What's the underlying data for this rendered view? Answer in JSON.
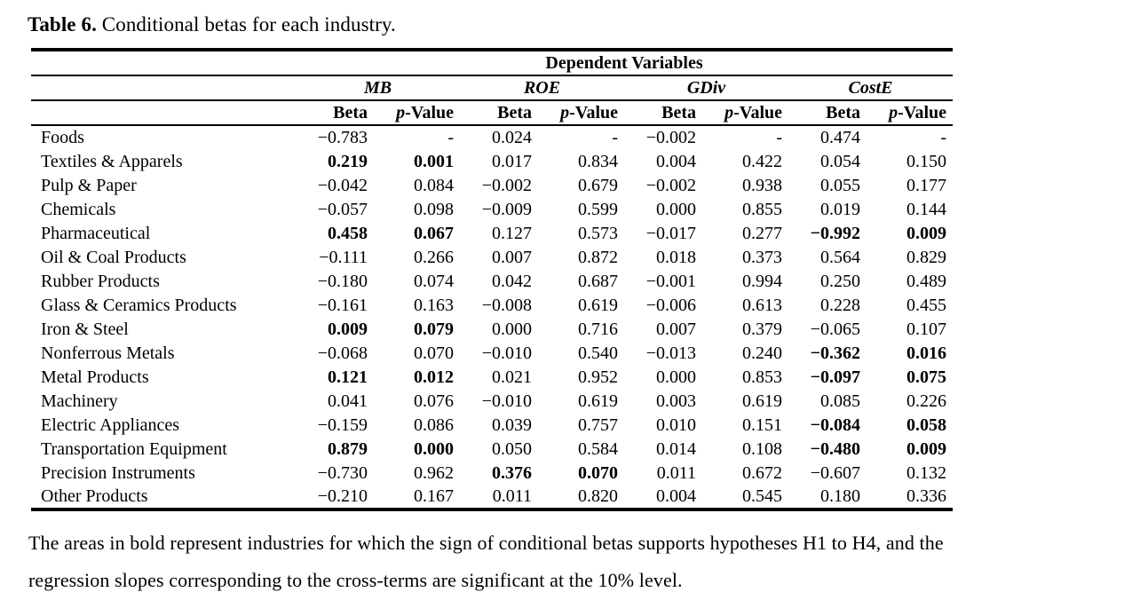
{
  "title": {
    "label": "Table 6.",
    "caption": " Conditional betas for each industry."
  },
  "table": {
    "dependent_variables": "Dependent Variables",
    "groups": [
      "MB",
      "ROE",
      "GDiv",
      "CostE"
    ],
    "beta_label": "Beta",
    "p_italic": "p",
    "p_rest": "-Value",
    "rows": [
      {
        "industry": "Foods",
        "values": [
          "−0.783",
          "-",
          "0.024",
          "-",
          "−0.002",
          "-",
          "0.474",
          "-"
        ],
        "bold": []
      },
      {
        "industry": "Textiles & Apparels",
        "values": [
          "0.219",
          "0.001",
          "0.017",
          "0.834",
          "0.004",
          "0.422",
          "0.054",
          "0.150"
        ],
        "bold": [
          0,
          1
        ]
      },
      {
        "industry": "Pulp & Paper",
        "values": [
          "−0.042",
          "0.084",
          "−0.002",
          "0.679",
          "−0.002",
          "0.938",
          "0.055",
          "0.177"
        ],
        "bold": []
      },
      {
        "industry": "Chemicals",
        "values": [
          "−0.057",
          "0.098",
          "−0.009",
          "0.599",
          "0.000",
          "0.855",
          "0.019",
          "0.144"
        ],
        "bold": []
      },
      {
        "industry": "Pharmaceutical",
        "values": [
          "0.458",
          "0.067",
          "0.127",
          "0.573",
          "−0.017",
          "0.277",
          "−0.992",
          "0.009"
        ],
        "bold": [
          0,
          1,
          6,
          7
        ]
      },
      {
        "industry": "Oil & Coal Products",
        "values": [
          "−0.111",
          "0.266",
          "0.007",
          "0.872",
          "0.018",
          "0.373",
          "0.564",
          "0.829"
        ],
        "bold": []
      },
      {
        "industry": "Rubber Products",
        "values": [
          "−0.180",
          "0.074",
          "0.042",
          "0.687",
          "−0.001",
          "0.994",
          "0.250",
          "0.489"
        ],
        "bold": []
      },
      {
        "industry": "Glass & Ceramics Products",
        "values": [
          "−0.161",
          "0.163",
          "−0.008",
          "0.619",
          "−0.006",
          "0.613",
          "0.228",
          "0.455"
        ],
        "bold": []
      },
      {
        "industry": "Iron & Steel",
        "values": [
          "0.009",
          "0.079",
          "0.000",
          "0.716",
          "0.007",
          "0.379",
          "−0.065",
          "0.107"
        ],
        "bold": [
          0,
          1
        ]
      },
      {
        "industry": "Nonferrous Metals",
        "values": [
          "−0.068",
          "0.070",
          "−0.010",
          "0.540",
          "−0.013",
          "0.240",
          "−0.362",
          "0.016"
        ],
        "bold": [
          6,
          7
        ]
      },
      {
        "industry": "Metal Products",
        "values": [
          "0.121",
          "0.012",
          "0.021",
          "0.952",
          "0.000",
          "0.853",
          "−0.097",
          "0.075"
        ],
        "bold": [
          0,
          1,
          6,
          7
        ]
      },
      {
        "industry": "Machinery",
        "values": [
          "0.041",
          "0.076",
          "−0.010",
          "0.619",
          "0.003",
          "0.619",
          "0.085",
          "0.226"
        ],
        "bold": []
      },
      {
        "industry": "Electric Appliances",
        "values": [
          "−0.159",
          "0.086",
          "0.039",
          "0.757",
          "0.010",
          "0.151",
          "−0.084",
          "0.058"
        ],
        "bold": [
          6,
          7
        ]
      },
      {
        "industry": "Transportation Equipment",
        "values": [
          "0.879",
          "0.000",
          "0.050",
          "0.584",
          "0.014",
          "0.108",
          "−0.480",
          "0.009"
        ],
        "bold": [
          0,
          1,
          6,
          7
        ]
      },
      {
        "industry": "Precision Instruments",
        "values": [
          "−0.730",
          "0.962",
          "0.376",
          "0.070",
          "0.011",
          "0.672",
          "−0.607",
          "0.132"
        ],
        "bold": [
          2,
          3
        ]
      },
      {
        "industry": "Other Products",
        "values": [
          "−0.210",
          "0.167",
          "0.011",
          "0.820",
          "0.004",
          "0.545",
          "0.180",
          "0.336"
        ],
        "bold": []
      }
    ]
  },
  "footnote": {
    "line1": "The areas in bold represent industries for which the sign of conditional betas supports hypotheses H1 to H4, and the",
    "line2": "regression slopes corresponding to the cross-terms are significant at the 10% level."
  }
}
